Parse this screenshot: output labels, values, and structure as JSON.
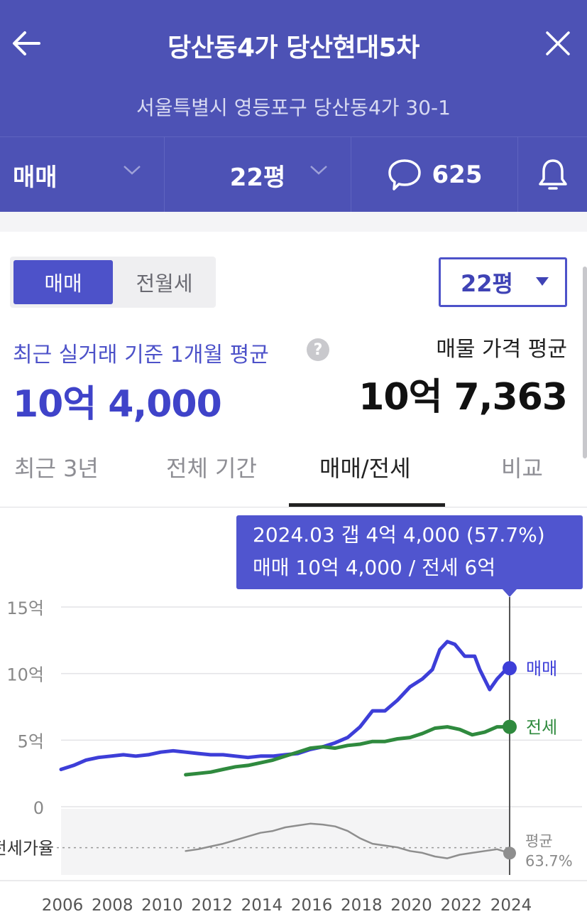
{
  "header": {
    "title": "당산동4가 당산현대5차",
    "address": "서울특별시 영등포구 당산동4가 30-1",
    "back_icon": "arrow-left-icon",
    "close_icon": "close-icon",
    "deal_type": "매매",
    "size": "22평",
    "comment_count": "625",
    "comment_icon": "speech-bubble-icon",
    "bell_icon": "bell-icon"
  },
  "summary": {
    "tab_sale": "매매",
    "tab_rent": "전월세",
    "size_select": "22평",
    "recent_label": "최근 실거래 기준 1개월 평균",
    "recent_value": "10억 4,000",
    "listing_label": "매물 가격 평균",
    "listing_value": "10억 7,363"
  },
  "tabs": [
    {
      "label": "최근 3년",
      "active": false
    },
    {
      "label": "전체 기간",
      "active": false
    },
    {
      "label": "매매/전세",
      "active": true
    },
    {
      "label": "비교",
      "active": false
    }
  ],
  "tooltip": {
    "line1": "2024.03  갭 4억 4,000 (57.7%)",
    "line2": "매매 10억 4,000 / 전세 6억"
  },
  "colors": {
    "header_bg": "#4d52b5",
    "accent": "#4d52c9",
    "sale_line": "#3d3ed8",
    "rent_line": "#2f8a3e",
    "ratio_line": "#8e8e8e"
  },
  "chart_data": {
    "type": "line",
    "y_tick_labels": [
      "15억",
      "10억",
      "5억",
      "0"
    ],
    "ylim": [
      0,
      15
    ],
    "y_unit": "억",
    "x_tick_labels": [
      "2006",
      "2008",
      "2010",
      "2012",
      "2014",
      "2016",
      "2018",
      "2020",
      "2022",
      "2024"
    ],
    "series": [
      {
        "name": "매매",
        "x": [
          2006.0,
          2006.5,
          2007.0,
          2007.5,
          2008.0,
          2008.5,
          2009.0,
          2009.5,
          2010.0,
          2010.5,
          2011.0,
          2011.5,
          2012.0,
          2012.5,
          2013.0,
          2013.5,
          2014.0,
          2014.5,
          2015.0,
          2015.5,
          2016.0,
          2016.5,
          2017.0,
          2017.5,
          2018.0,
          2018.5,
          2019.0,
          2019.5,
          2020.0,
          2020.5,
          2020.9,
          2021.2,
          2021.5,
          2021.8,
          2022.2,
          2022.6,
          2022.8,
          2023.2,
          2023.5,
          2023.8,
          2024.0
        ],
        "values": [
          2.8,
          3.1,
          3.5,
          3.7,
          3.8,
          3.9,
          3.8,
          3.9,
          4.1,
          4.2,
          4.1,
          4.0,
          3.9,
          3.9,
          3.8,
          3.7,
          3.8,
          3.8,
          3.9,
          4.0,
          4.3,
          4.5,
          4.8,
          5.2,
          6.0,
          7.2,
          7.2,
          8.0,
          9.0,
          9.6,
          10.3,
          11.8,
          12.4,
          12.2,
          11.3,
          11.3,
          10.3,
          8.8,
          9.6,
          10.2,
          10.4
        ]
      },
      {
        "name": "전세",
        "x": [
          2011.0,
          2011.5,
          2012.0,
          2012.5,
          2013.0,
          2013.5,
          2014.0,
          2014.5,
          2015.0,
          2015.5,
          2016.0,
          2016.5,
          2017.0,
          2017.5,
          2018.0,
          2018.5,
          2019.0,
          2019.5,
          2020.0,
          2020.5,
          2021.0,
          2021.5,
          2022.0,
          2022.5,
          2023.0,
          2023.5,
          2024.0
        ],
        "values": [
          2.4,
          2.5,
          2.6,
          2.8,
          3.0,
          3.1,
          3.3,
          3.5,
          3.8,
          4.1,
          4.4,
          4.5,
          4.4,
          4.6,
          4.7,
          4.9,
          4.9,
          5.1,
          5.2,
          5.5,
          5.9,
          6.0,
          5.8,
          5.4,
          5.6,
          6.0,
          6.0
        ]
      },
      {
        "name": "전세가율",
        "x": [
          2011.0,
          2011.5,
          2012.0,
          2012.5,
          2013.0,
          2013.5,
          2014.0,
          2014.5,
          2015.0,
          2015.5,
          2016.0,
          2016.5,
          2017.0,
          2017.5,
          2018.0,
          2018.5,
          2019.0,
          2019.5,
          2020.0,
          2020.5,
          2021.0,
          2021.5,
          2022.0,
          2022.5,
          2023.0,
          2023.5,
          2024.0
        ],
        "values": [
          60,
          62,
          65,
          68,
          72,
          76,
          80,
          82,
          86,
          88,
          90,
          89,
          87,
          82,
          74,
          68,
          66,
          64,
          60,
          58,
          54,
          52,
          56,
          58,
          60,
          62,
          57.7
        ]
      }
    ],
    "end_labels": {
      "sale": "매매",
      "rent": "전세"
    },
    "ratio_label": "전세가율",
    "ratio_avg_label": "평균",
    "ratio_avg_value": "63.7%",
    "ratio_avg": 63.7,
    "ratio_range": [
      40,
      100
    ],
    "marker_x": 2024.0
  }
}
